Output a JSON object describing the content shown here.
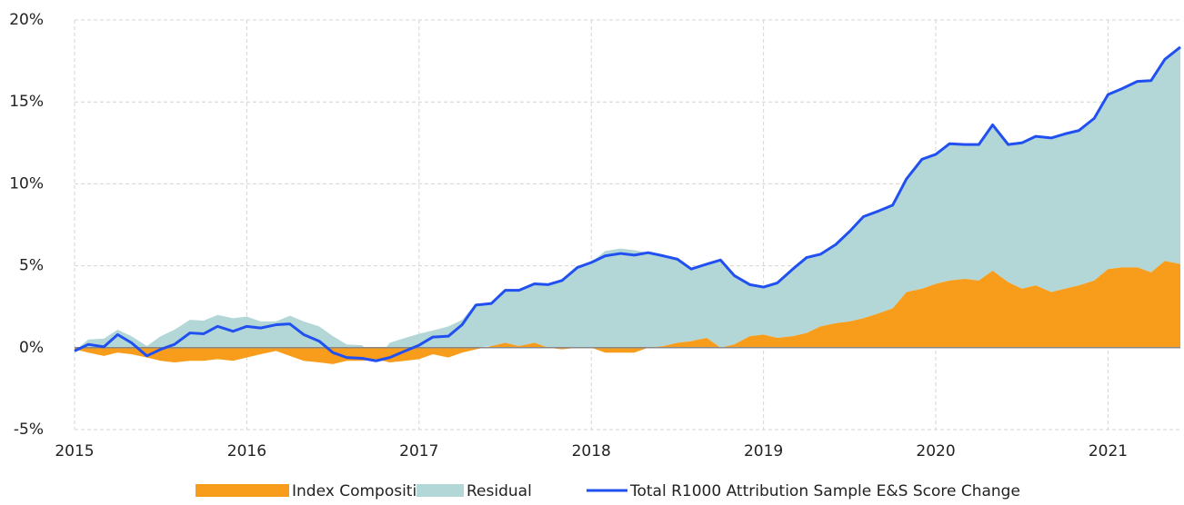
{
  "chart_data": {
    "type": "area",
    "x": [
      2015.0,
      2015.08,
      2015.17,
      2015.25,
      2015.33,
      2015.42,
      2015.5,
      2015.58,
      2015.67,
      2015.75,
      2015.83,
      2015.92,
      2016.0,
      2016.08,
      2016.17,
      2016.25,
      2016.33,
      2016.42,
      2016.5,
      2016.58,
      2016.67,
      2016.75,
      2016.83,
      2016.92,
      2017.0,
      2017.08,
      2017.17,
      2017.25,
      2017.33,
      2017.42,
      2017.5,
      2017.58,
      2017.67,
      2017.75,
      2017.83,
      2017.92,
      2018.0,
      2018.08,
      2018.17,
      2018.25,
      2018.33,
      2018.42,
      2018.5,
      2018.58,
      2018.67,
      2018.75,
      2018.83,
      2018.92,
      2019.0,
      2019.08,
      2019.17,
      2019.25,
      2019.33,
      2019.42,
      2019.5,
      2019.58,
      2019.67,
      2019.75,
      2019.83,
      2019.92,
      2020.0,
      2020.08,
      2020.17,
      2020.25,
      2020.33,
      2020.42,
      2020.5,
      2020.58,
      2020.67,
      2020.75,
      2020.83,
      2020.92,
      2021.0,
      2021.08,
      2021.17,
      2021.25,
      2021.33,
      2021.42
    ],
    "series": [
      {
        "name": "Index Composition",
        "color": "#f89c1c",
        "values": [
          -0.1,
          -0.3,
          -0.5,
          -0.3,
          -0.4,
          -0.6,
          -0.8,
          -0.9,
          -0.8,
          -0.8,
          -0.7,
          -0.8,
          -0.6,
          -0.4,
          -0.2,
          -0.5,
          -0.8,
          -0.9,
          -1.0,
          -0.8,
          -0.8,
          -0.7,
          -0.9,
          -0.8,
          -0.7,
          -0.4,
          -0.6,
          -0.3,
          -0.1,
          0.1,
          0.3,
          0.1,
          0.3,
          0.0,
          -0.1,
          0.0,
          0.0,
          -0.3,
          -0.3,
          -0.3,
          0.0,
          0.1,
          0.3,
          0.4,
          0.6,
          0.0,
          0.2,
          0.7,
          0.8,
          0.6,
          0.7,
          0.9,
          1.3,
          1.5,
          1.6,
          1.8,
          2.1,
          2.4,
          3.4,
          3.6,
          3.9,
          4.1,
          4.2,
          4.1,
          4.7,
          4.0,
          3.6,
          3.8,
          3.4,
          3.6,
          3.8,
          4.1,
          4.8,
          4.9,
          4.9,
          4.6,
          5.3,
          5.1
        ]
      },
      {
        "name": "Residual",
        "color": "#b3d7d6",
        "values": [
          -0.1,
          0.5,
          0.55,
          1.1,
          0.7,
          0.1,
          0.7,
          1.1,
          1.7,
          1.65,
          2.0,
          1.8,
          1.9,
          1.6,
          1.6,
          1.95,
          1.6,
          1.3,
          0.7,
          0.2,
          0.15,
          -0.1,
          0.3,
          0.6,
          0.85,
          1.05,
          1.3,
          1.7,
          2.7,
          2.6,
          3.2,
          3.4,
          3.6,
          3.85,
          4.2,
          4.9,
          5.2,
          5.9,
          6.05,
          5.95,
          5.8,
          5.5,
          5.1,
          4.4,
          4.5,
          5.35,
          4.2,
          3.15,
          2.9,
          3.35,
          4.1,
          4.6,
          4.4,
          4.8,
          5.5,
          6.2,
          6.25,
          6.3,
          6.9,
          7.9,
          7.9,
          8.35,
          8.2,
          8.3,
          8.9,
          8.4,
          8.9,
          9.1,
          9.4,
          9.45,
          9.45,
          9.9,
          10.65,
          10.9,
          11.35,
          11.7,
          12.3,
          13.25
        ]
      },
      {
        "name": "Total R1000 Attribution Sample E&S Score Change",
        "color": "#2150f0",
        "line": true,
        "values": [
          -0.2,
          0.2,
          0.05,
          0.8,
          0.3,
          -0.5,
          -0.1,
          0.2,
          0.9,
          0.85,
          1.3,
          1.0,
          1.3,
          1.2,
          1.4,
          1.45,
          0.8,
          0.4,
          -0.3,
          -0.6,
          -0.65,
          -0.8,
          -0.6,
          -0.2,
          0.15,
          0.65,
          0.7,
          1.4,
          2.6,
          2.7,
          3.5,
          3.5,
          3.9,
          3.85,
          4.1,
          4.9,
          5.2,
          5.6,
          5.75,
          5.65,
          5.8,
          5.6,
          5.4,
          4.8,
          5.1,
          5.35,
          4.4,
          3.85,
          3.7,
          3.95,
          4.8,
          5.5,
          5.7,
          6.3,
          7.1,
          8.0,
          8.35,
          8.7,
          10.3,
          11.5,
          11.8,
          12.45,
          12.4,
          12.4,
          13.6,
          12.4,
          12.5,
          12.9,
          12.8,
          13.05,
          13.25,
          14.0,
          15.45,
          15.8,
          16.25,
          16.3,
          17.6,
          18.35
        ]
      }
    ],
    "xlim": [
      2015,
      2021.42
    ],
    "xticks": [
      2015,
      2016,
      2017,
      2018,
      2019,
      2020,
      2021
    ],
    "ylim": [
      -5,
      20
    ],
    "yticks": [
      {
        "value": -5,
        "label": "-5%"
      },
      {
        "value": 0,
        "label": "0%"
      },
      {
        "value": 5,
        "label": "5%"
      },
      {
        "value": 10,
        "label": "10%"
      },
      {
        "value": 15,
        "label": "15%"
      },
      {
        "value": 20,
        "label": "20%"
      }
    ],
    "grid": true,
    "legend": "bottom"
  }
}
